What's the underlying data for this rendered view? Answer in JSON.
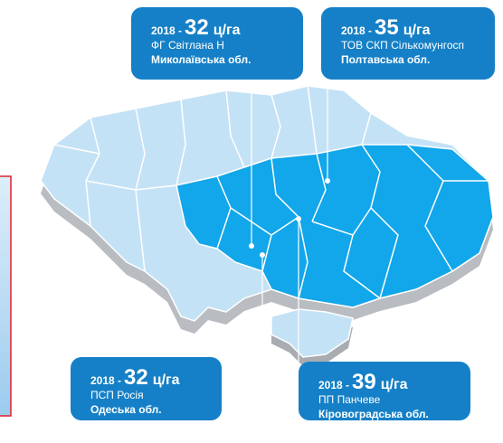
{
  "callouts": [
    {
      "year": "2018 -",
      "value": 32,
      "unit": "ц/га",
      "farm": "ФГ Світлана Н",
      "region": "Миколаївська обл."
    },
    {
      "year": "2018 -",
      "value": 35,
      "unit": "ц/га",
      "farm": "ТОВ СКП Сількомунгосп",
      "region": "Полтавська обл."
    },
    {
      "year": "2018 -",
      "value": 32,
      "unit": "ц/га",
      "farm": "ПСП Росія",
      "region": "Одеська обл."
    },
    {
      "year": "2018 -",
      "value": 39,
      "unit": "ц/га",
      "farm": "ПП Панчеве",
      "region": "Кіровоградська обл."
    }
  ]
}
